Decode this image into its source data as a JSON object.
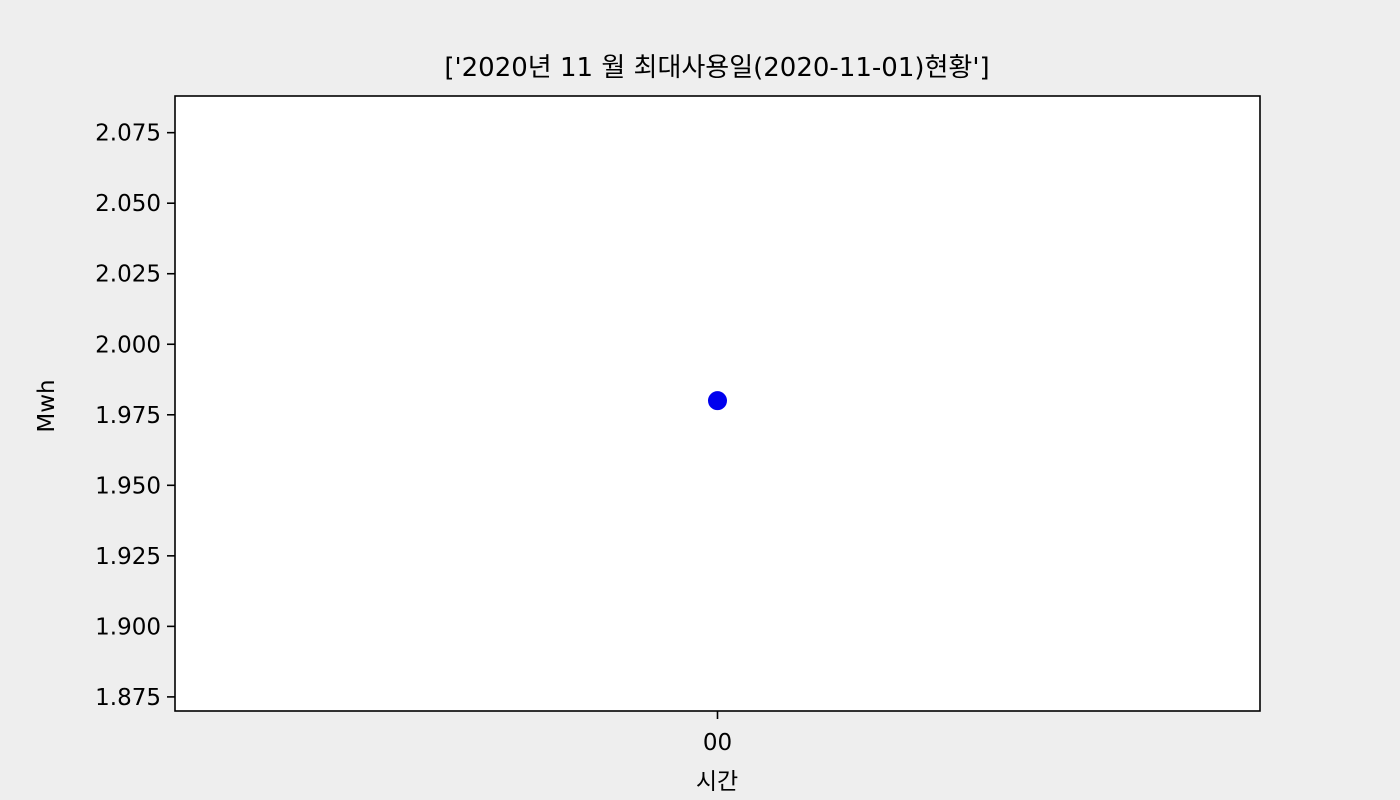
{
  "colors": {
    "figure_background": "#eeeeee",
    "plot_background": "#ffffff",
    "marker": "#0000ee",
    "axis": "#000000"
  },
  "chart_data": {
    "type": "scatter",
    "title": "['2020년 11 월 최대사용일(2020-11-01)현황']",
    "xlabel": "시간",
    "ylabel": "Mwh",
    "categories": [
      "00"
    ],
    "series": [
      {
        "values": [
          1.98
        ]
      }
    ],
    "ylim": [
      1.87,
      2.088
    ],
    "yticks": [
      "1.875",
      "1.900",
      "1.925",
      "1.950",
      "1.975",
      "2.000",
      "2.025",
      "2.050",
      "2.075"
    ],
    "grid": false,
    "legend": "none"
  }
}
